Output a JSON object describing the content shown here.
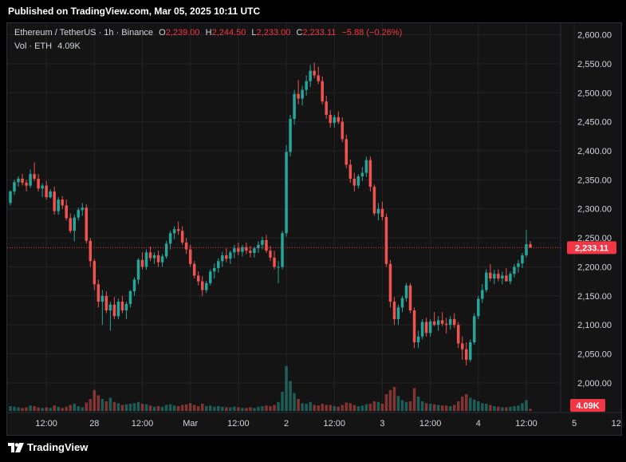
{
  "header": {
    "published": "Published on TradingView.com, Mar 05, 2025 10:11 UTC"
  },
  "legend": {
    "symbol": "Ethereum / TetherUS · 1h · Binance",
    "o_label": "O",
    "open": "2,239.00",
    "h_label": "H",
    "high": "2,244.50",
    "l_label": "L",
    "low": "2,233.00",
    "c_label": "C",
    "close": "2,233.11",
    "change": "−5.88 (−0.26%)",
    "vol_label": "Vol · ETH",
    "vol": "4.09K"
  },
  "footer": {
    "brand": "TradingView"
  },
  "colors": {
    "up": "#26a69a",
    "down": "#ef5350",
    "background": "#141414",
    "price_line": "#f23645",
    "text": "#d1d4dc"
  },
  "chart_data": {
    "type": "candlestick",
    "symbol": "ETHUSDT",
    "interval": "1h",
    "ylim": [
      1960,
      2620
    ],
    "y_ticks": [
      "2,600.00",
      "2,550.00",
      "2,500.00",
      "2,450.00",
      "2,400.00",
      "2,350.00",
      "2,300.00",
      "2,250.00",
      "2,200.00",
      "2,150.00",
      "2,100.00",
      "2,050.00",
      "2,000.00"
    ],
    "y_tick_values": [
      2600,
      2550,
      2500,
      2450,
      2400,
      2350,
      2300,
      2250,
      2200,
      2150,
      2100,
      2050,
      2000
    ],
    "x_ticks": [
      {
        "label": "12:00",
        "index": 9
      },
      {
        "label": "28",
        "index": 21
      },
      {
        "label": "12:00",
        "index": 33
      },
      {
        "label": "Mar",
        "index": 45
      },
      {
        "label": "12:00",
        "index": 57
      },
      {
        "label": "2",
        "index": 69
      },
      {
        "label": "12:00",
        "index": 81
      },
      {
        "label": "3",
        "index": 93
      },
      {
        "label": "12:00",
        "index": 105
      },
      {
        "label": "4",
        "index": 117
      },
      {
        "label": "12:00",
        "index": 129
      },
      {
        "label": "5",
        "index": 141
      },
      {
        "label": "12:00",
        "index": 153
      }
    ],
    "last_price": 2233.11,
    "last_price_label": "2,233.11",
    "last_volume_label": "4.09K",
    "candles": [
      [
        2310,
        2332,
        2306,
        2330,
        0.8
      ],
      [
        2330,
        2350,
        2324,
        2346,
        0.7
      ],
      [
        2346,
        2356,
        2338,
        2352,
        0.6
      ],
      [
        2352,
        2360,
        2340,
        2345,
        0.5
      ],
      [
        2345,
        2350,
        2330,
        2340,
        0.6
      ],
      [
        2340,
        2368,
        2336,
        2360,
        0.9
      ],
      [
        2360,
        2380,
        2348,
        2352,
        0.8
      ],
      [
        2352,
        2360,
        2330,
        2335,
        0.6
      ],
      [
        2335,
        2344,
        2320,
        2340,
        0.5
      ],
      [
        2340,
        2348,
        2316,
        2320,
        0.6
      ],
      [
        2320,
        2334,
        2318,
        2330,
        0.5
      ],
      [
        2330,
        2338,
        2290,
        2296,
        0.9
      ],
      [
        2296,
        2320,
        2290,
        2316,
        0.7
      ],
      [
        2316,
        2322,
        2300,
        2306,
        0.5
      ],
      [
        2306,
        2316,
        2280,
        2284,
        0.7
      ],
      [
        2284,
        2292,
        2258,
        2262,
        1.0
      ],
      [
        2262,
        2290,
        2244,
        2285,
        1.2
      ],
      [
        2285,
        2302,
        2280,
        2298,
        0.8
      ],
      [
        2298,
        2310,
        2288,
        2302,
        0.6
      ],
      [
        2302,
        2308,
        2240,
        2245,
        1.4
      ],
      [
        2245,
        2250,
        2200,
        2210,
        2.0
      ],
      [
        2210,
        2214,
        2160,
        2170,
        3.5
      ],
      [
        2170,
        2178,
        2130,
        2140,
        2.6
      ],
      [
        2140,
        2160,
        2100,
        2150,
        2.0
      ],
      [
        2150,
        2158,
        2120,
        2125,
        1.6
      ],
      [
        2125,
        2140,
        2090,
        2135,
        2.2
      ],
      [
        2135,
        2148,
        2110,
        2115,
        1.5
      ],
      [
        2115,
        2145,
        2110,
        2140,
        1.3
      ],
      [
        2140,
        2150,
        2120,
        2125,
        1.0
      ],
      [
        2125,
        2140,
        2110,
        2136,
        1.1
      ],
      [
        2136,
        2160,
        2130,
        2158,
        1.2
      ],
      [
        2158,
        2182,
        2150,
        2178,
        1.3
      ],
      [
        2178,
        2215,
        2170,
        2212,
        1.5
      ],
      [
        2212,
        2225,
        2195,
        2200,
        1.2
      ],
      [
        2200,
        2230,
        2195,
        2225,
        1.1
      ],
      [
        2225,
        2235,
        2210,
        2215,
        0.9
      ],
      [
        2215,
        2225,
        2205,
        2220,
        0.7
      ],
      [
        2220,
        2228,
        2200,
        2208,
        0.8
      ],
      [
        2208,
        2222,
        2200,
        2218,
        0.7
      ],
      [
        2218,
        2245,
        2214,
        2240,
        1.0
      ],
      [
        2240,
        2262,
        2230,
        2258,
        1.1
      ],
      [
        2258,
        2270,
        2248,
        2265,
        0.9
      ],
      [
        2265,
        2278,
        2255,
        2262,
        0.8
      ],
      [
        2262,
        2270,
        2238,
        2242,
        1.0
      ],
      [
        2242,
        2250,
        2222,
        2230,
        1.1
      ],
      [
        2230,
        2238,
        2200,
        2205,
        1.3
      ],
      [
        2205,
        2210,
        2180,
        2185,
        1.0
      ],
      [
        2185,
        2192,
        2168,
        2175,
        0.8
      ],
      [
        2175,
        2184,
        2150,
        2160,
        1.2
      ],
      [
        2160,
        2176,
        2155,
        2172,
        0.8
      ],
      [
        2172,
        2196,
        2168,
        2192,
        0.9
      ],
      [
        2192,
        2206,
        2180,
        2198,
        0.7
      ],
      [
        2198,
        2215,
        2190,
        2210,
        0.8
      ],
      [
        2210,
        2226,
        2200,
        2220,
        0.7
      ],
      [
        2220,
        2232,
        2208,
        2214,
        0.6
      ],
      [
        2214,
        2228,
        2205,
        2225,
        0.6
      ],
      [
        2225,
        2238,
        2215,
        2232,
        0.7
      ],
      [
        2232,
        2242,
        2220,
        2226,
        0.6
      ],
      [
        2226,
        2238,
        2218,
        2234,
        0.5
      ],
      [
        2234,
        2242,
        2222,
        2228,
        0.5
      ],
      [
        2228,
        2236,
        2216,
        2224,
        0.6
      ],
      [
        2224,
        2235,
        2216,
        2232,
        0.5
      ],
      [
        2232,
        2244,
        2224,
        2238,
        0.7
      ],
      [
        2238,
        2252,
        2230,
        2246,
        0.8
      ],
      [
        2246,
        2255,
        2224,
        2228,
        0.9
      ],
      [
        2228,
        2236,
        2210,
        2216,
        0.8
      ],
      [
        2216,
        2228,
        2196,
        2200,
        1.0
      ],
      [
        2200,
        2210,
        2172,
        2200,
        1.5
      ],
      [
        2200,
        2262,
        2196,
        2258,
        3.2
      ],
      [
        2258,
        2410,
        2252,
        2398,
        7.5
      ],
      [
        2398,
        2462,
        2390,
        2455,
        5.0
      ],
      [
        2455,
        2505,
        2445,
        2498,
        3.0
      ],
      [
        2498,
        2522,
        2480,
        2490,
        2.0
      ],
      [
        2490,
        2512,
        2478,
        2505,
        1.3
      ],
      [
        2505,
        2530,
        2495,
        2520,
        1.2
      ],
      [
        2520,
        2548,
        2510,
        2538,
        1.5
      ],
      [
        2538,
        2552,
        2525,
        2530,
        1.0
      ],
      [
        2530,
        2545,
        2515,
        2520,
        0.9
      ],
      [
        2520,
        2528,
        2480,
        2485,
        1.2
      ],
      [
        2485,
        2495,
        2455,
        2462,
        1.0
      ],
      [
        2462,
        2470,
        2440,
        2448,
        1.0
      ],
      [
        2448,
        2462,
        2440,
        2458,
        0.8
      ],
      [
        2458,
        2468,
        2446,
        2450,
        0.7
      ],
      [
        2450,
        2458,
        2415,
        2420,
        1.0
      ],
      [
        2420,
        2428,
        2370,
        2376,
        1.4
      ],
      [
        2376,
        2385,
        2345,
        2352,
        1.3
      ],
      [
        2352,
        2362,
        2330,
        2340,
        1.0
      ],
      [
        2340,
        2360,
        2335,
        2356,
        0.8
      ],
      [
        2356,
        2372,
        2348,
        2362,
        0.9
      ],
      [
        2362,
        2390,
        2355,
        2384,
        1.1
      ],
      [
        2384,
        2390,
        2330,
        2338,
        1.2
      ],
      [
        2338,
        2342,
        2288,
        2292,
        1.6
      ],
      [
        2292,
        2310,
        2280,
        2300,
        1.5
      ],
      [
        2300,
        2312,
        2280,
        2286,
        1.2
      ],
      [
        2286,
        2292,
        2200,
        2205,
        2.8
      ],
      [
        2205,
        2212,
        2130,
        2140,
        3.5
      ],
      [
        2140,
        2148,
        2100,
        2110,
        4.0
      ],
      [
        2110,
        2135,
        2100,
        2130,
        2.5
      ],
      [
        2130,
        2150,
        2122,
        2146,
        1.8
      ],
      [
        2146,
        2172,
        2140,
        2168,
        1.5
      ],
      [
        2168,
        2172,
        2120,
        2125,
        1.6
      ],
      [
        2125,
        2130,
        2060,
        2070,
        3.8
      ],
      [
        2070,
        2090,
        2060,
        2080,
        2.4
      ],
      [
        2080,
        2110,
        2075,
        2105,
        1.6
      ],
      [
        2105,
        2112,
        2080,
        2086,
        1.3
      ],
      [
        2086,
        2110,
        2080,
        2106,
        1.2
      ],
      [
        2106,
        2122,
        2098,
        2100,
        1.1
      ],
      [
        2100,
        2115,
        2090,
        2108,
        1.0
      ],
      [
        2108,
        2122,
        2098,
        2102,
        0.9
      ],
      [
        2102,
        2112,
        2085,
        2100,
        0.9
      ],
      [
        2100,
        2115,
        2092,
        2110,
        0.8
      ],
      [
        2110,
        2120,
        2095,
        2100,
        1.0
      ],
      [
        2100,
        2105,
        2060,
        2068,
        1.6
      ],
      [
        2068,
        2080,
        2040,
        2058,
        2.4
      ],
      [
        2058,
        2070,
        2030,
        2040,
        2.8
      ],
      [
        2040,
        2075,
        2036,
        2070,
        2.2
      ],
      [
        2070,
        2120,
        2066,
        2115,
        1.9
      ],
      [
        2115,
        2150,
        2110,
        2145,
        1.6
      ],
      [
        2145,
        2170,
        2138,
        2160,
        1.3
      ],
      [
        2160,
        2196,
        2156,
        2190,
        1.2
      ],
      [
        2190,
        2205,
        2175,
        2180,
        1.0
      ],
      [
        2180,
        2195,
        2170,
        2188,
        0.8
      ],
      [
        2188,
        2196,
        2175,
        2180,
        0.7
      ],
      [
        2180,
        2192,
        2170,
        2185,
        0.6
      ],
      [
        2185,
        2198,
        2178,
        2175,
        0.6
      ],
      [
        2175,
        2192,
        2170,
        2188,
        0.7
      ],
      [
        2188,
        2205,
        2182,
        2200,
        0.8
      ],
      [
        2200,
        2212,
        2190,
        2206,
        0.9
      ],
      [
        2206,
        2224,
        2198,
        2220,
        1.3
      ],
      [
        2220,
        2264,
        2216,
        2239,
        1.8
      ],
      [
        2239,
        2244.5,
        2233,
        2233.11,
        0.35
      ]
    ]
  }
}
